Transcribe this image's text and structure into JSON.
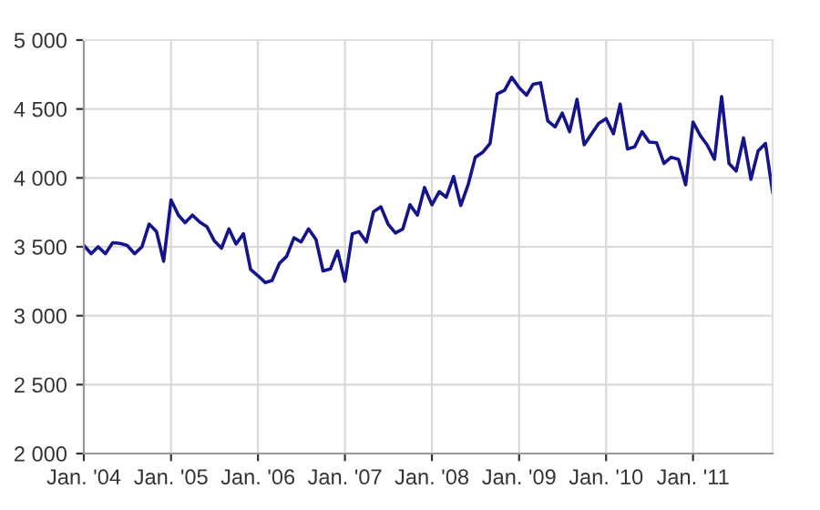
{
  "chart_data": {
    "type": "line",
    "x": [
      "2004-01",
      "2004-02",
      "2004-03",
      "2004-04",
      "2004-05",
      "2004-06",
      "2004-07",
      "2004-08",
      "2004-09",
      "2004-10",
      "2004-11",
      "2004-12",
      "2005-01",
      "2005-02",
      "2005-03",
      "2005-04",
      "2005-05",
      "2005-06",
      "2005-07",
      "2005-08",
      "2005-09",
      "2005-10",
      "2005-11",
      "2005-12",
      "2006-01",
      "2006-02",
      "2006-03",
      "2006-04",
      "2006-05",
      "2006-06",
      "2006-07",
      "2006-08",
      "2006-09",
      "2006-10",
      "2006-11",
      "2006-12",
      "2007-01",
      "2007-02",
      "2007-03",
      "2007-04",
      "2007-05",
      "2007-06",
      "2007-07",
      "2007-08",
      "2007-09",
      "2007-10",
      "2007-11",
      "2007-12",
      "2008-01",
      "2008-02",
      "2008-03",
      "2008-04",
      "2008-05",
      "2008-06",
      "2008-07",
      "2008-08",
      "2008-09",
      "2008-10",
      "2008-11",
      "2008-12",
      "2009-01",
      "2009-02",
      "2009-03",
      "2009-04",
      "2009-05",
      "2009-06",
      "2009-07",
      "2009-08",
      "2009-09",
      "2009-10",
      "2009-11",
      "2009-12",
      "2010-01",
      "2010-02",
      "2010-03",
      "2010-04",
      "2010-05",
      "2010-06",
      "2010-07",
      "2010-08",
      "2010-09",
      "2010-10",
      "2010-11",
      "2010-12",
      "2011-01",
      "2011-02",
      "2011-03",
      "2011-04",
      "2011-05",
      "2011-06",
      "2011-07",
      "2011-08",
      "2011-09",
      "2011-10",
      "2011-11",
      "2011-12"
    ],
    "series": [
      {
        "color": "#14148c",
        "values": [
          3510,
          3450,
          3500,
          3450,
          3530,
          3525,
          3510,
          3450,
          3500,
          3665,
          3610,
          3395,
          3840,
          3730,
          3675,
          3730,
          3680,
          3645,
          3545,
          3490,
          3630,
          3520,
          3595,
          3335,
          3290,
          3240,
          3255,
          3380,
          3430,
          3565,
          3535,
          3630,
          3555,
          3325,
          3340,
          3470,
          3250,
          3595,
          3610,
          3535,
          3755,
          3790,
          3665,
          3600,
          3630,
          3805,
          3730,
          3930,
          3805,
          3900,
          3860,
          4010,
          3800,
          3950,
          4150,
          4185,
          4250,
          4610,
          4635,
          4730,
          4655,
          4600,
          4680,
          4690,
          4415,
          4370,
          4470,
          4335,
          4570,
          4240,
          4320,
          4395,
          4430,
          4320,
          4535,
          4210,
          4225,
          4335,
          4260,
          4255,
          4105,
          4150,
          4135,
          3950,
          4405,
          4305,
          4240,
          4135,
          4590,
          4105,
          4050,
          4290,
          3990,
          4195,
          4250,
          3895
        ]
      }
    ],
    "xlim": [
      "2004-01",
      "2011-12"
    ],
    "xticks": [
      {
        "value": "2004-01",
        "label": "Jan. '04"
      },
      {
        "value": "2005-01",
        "label": "Jan. '05"
      },
      {
        "value": "2006-01",
        "label": "Jan. '06"
      },
      {
        "value": "2007-01",
        "label": "Jan. '07"
      },
      {
        "value": "2008-01",
        "label": "Jan. '08"
      },
      {
        "value": "2009-01",
        "label": "Jan. '09"
      },
      {
        "value": "2010-01",
        "label": "Jan. '10"
      },
      {
        "value": "2011-01",
        "label": "Jan. '11"
      }
    ],
    "ylim": [
      2000,
      5000
    ],
    "yticks": [
      {
        "value": 2000,
        "label": "2 000"
      },
      {
        "value": 2500,
        "label": "2 500"
      },
      {
        "value": 3000,
        "label": "3 000"
      },
      {
        "value": 3500,
        "label": "3 500"
      },
      {
        "value": 4000,
        "label": "4 000"
      },
      {
        "value": 4500,
        "label": "4 500"
      },
      {
        "value": 5000,
        "label": "5 000"
      }
    ],
    "grid": true
  }
}
